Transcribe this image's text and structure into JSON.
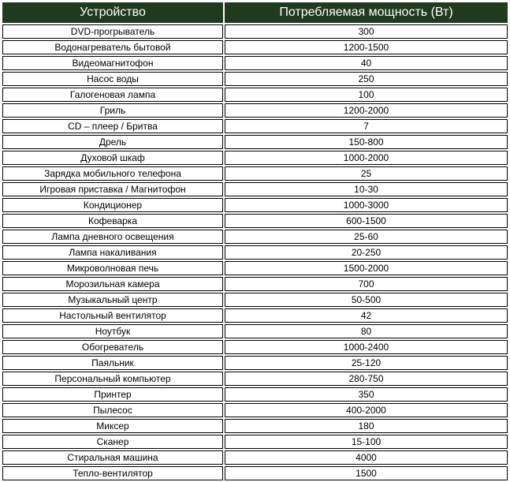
{
  "table": {
    "headers": [
      "Устройство",
      "Потребляемая мощность (Вт)"
    ],
    "rows": [
      [
        "DVD-прогрыватель",
        "300"
      ],
      [
        "Водонагреватель бытовой",
        "1200-1500"
      ],
      [
        "Видеомагнитофон",
        "40"
      ],
      [
        "Насос воды",
        "250"
      ],
      [
        "Галогеновая лампа",
        "100"
      ],
      [
        "Гриль",
        "1200-2000"
      ],
      [
        "CD – плеер / Бритва",
        "7"
      ],
      [
        "Дрель",
        "150-800"
      ],
      [
        "Духовой шкаф",
        "1000-2000"
      ],
      [
        "Зарядка мобильного телефона",
        "25"
      ],
      [
        "Игровая приставка / Магнитофон",
        "10-30"
      ],
      [
        "Кондиционер",
        "1000-3000"
      ],
      [
        "Кофеварка",
        "600-1500"
      ],
      [
        "Лампа дневного освещения",
        "25-60"
      ],
      [
        "Лампа накаливания",
        "20-250"
      ],
      [
        "Микроволновая печь",
        "1500-2000"
      ],
      [
        "Морозильная камера",
        "700"
      ],
      [
        "Музыкальный центр",
        "50-500"
      ],
      [
        "Настольный вентилятор",
        "42"
      ],
      [
        "Ноутбук",
        "80"
      ],
      [
        "Обогреватель",
        "1000-2400"
      ],
      [
        "Паяльник",
        "25-120"
      ],
      [
        "Персональный компьютер",
        "280-750"
      ],
      [
        "Принтер",
        "350"
      ],
      [
        "Пылесос",
        "400-2000"
      ],
      [
        "Миксер",
        "180"
      ],
      [
        "Сканер",
        "15-100"
      ],
      [
        "Стиральная машина",
        "4000"
      ],
      [
        "Тепло-вентилятор",
        "1500"
      ]
    ]
  },
  "colors": {
    "header_bg": "#1f3a1d",
    "header_text": "#ffffff",
    "border": "#000000"
  }
}
